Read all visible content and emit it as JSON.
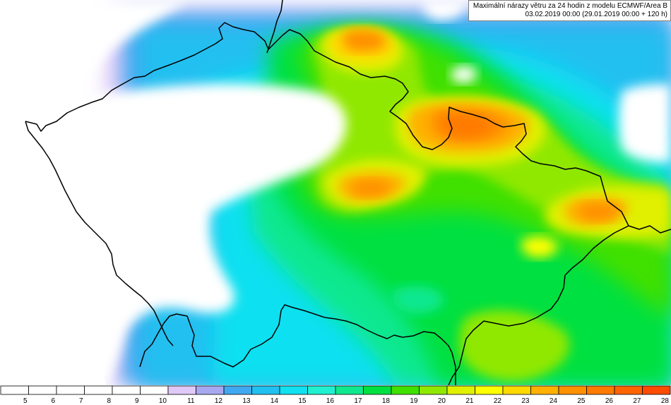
{
  "title": {
    "line1": "Maximální nárazy větru za 24 hodin z modelu ECMWF/Area B",
    "line2": "03.02.2019 00:00 (29.01.2019 00:00 + 120 h)"
  },
  "legend": {
    "values": [
      "5",
      "6",
      "7",
      "8",
      "9",
      "10",
      "11",
      "12",
      "13",
      "14",
      "15",
      "16",
      "17",
      "18",
      "19",
      "20",
      "21",
      "22",
      "23",
      "24",
      "25",
      "26",
      "27",
      "28"
    ],
    "colors": [
      "#ffffff",
      "#ffffff",
      "#ffffff",
      "#ffffff",
      "#ffffff",
      "#ffffff",
      "#e0c8f8",
      "#a8a8f0",
      "#40a8f0",
      "#20c0f0",
      "#10e0f0",
      "#20f0d0",
      "#10e890",
      "#00e040",
      "#40e000",
      "#90e800",
      "#e0f000",
      "#ffff00",
      "#ffd800",
      "#ffb000",
      "#ff9000",
      "#ff7a00",
      "#ff6400",
      "#ff4c00"
    ]
  },
  "colors": {
    "background": "#ffffff",
    "border_line": "#000000",
    "legend_border": "#000000"
  }
}
